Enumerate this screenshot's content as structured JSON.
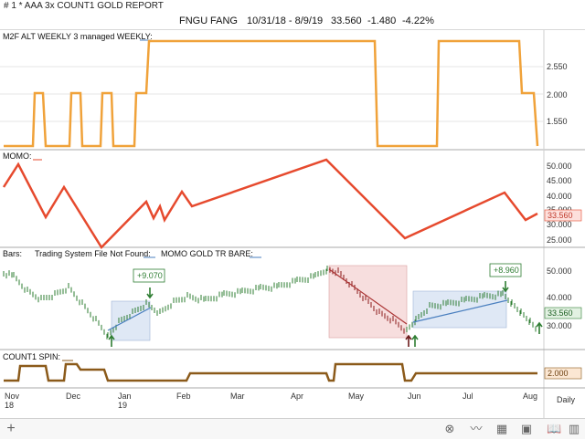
{
  "title": "#  1 * AAA 3x COUNT1 GOLD REPORT",
  "header": {
    "symbol": "FNGU",
    "group": "FANG",
    "date_range": "10/31/18 - 8/9/19",
    "last": "33.560",
    "change": "-1.480",
    "change_pct": "-4.22%"
  },
  "panels": {
    "m2f": {
      "label": "M2F ALT WEEKLY 3 managed WEEKLY:",
      "ticks": [
        "2.550",
        "2.000",
        "1.550"
      ],
      "color": "#f0a23a"
    },
    "momo": {
      "label": "MOMO:",
      "ticks": [
        "50.000",
        "45.000",
        "40.000",
        "35.000",
        "30.000",
        "25.000"
      ],
      "current": "33.560",
      "color": "#e64a2e"
    },
    "bars": {
      "label": "Bars:",
      "label2": "Trading System File Not Found:",
      "label3": "MOMO GOLD TR BARE:",
      "ticks": [
        "50.000",
        "40.000",
        "30.000"
      ],
      "current": "33.560",
      "annotation1": "+9.070",
      "annotation2": "+8.960",
      "up_color": "#2e7d32"
    },
    "count1": {
      "label": "COUNT1 SPIN:",
      "current": "2.000",
      "color": "#8b5a1a"
    }
  },
  "x_axis": {
    "months": [
      "Nov",
      "Dec",
      "Jan",
      "Feb",
      "Mar",
      "Apr",
      "May",
      "Jun",
      "Jul",
      "Aug"
    ],
    "years": [
      "18",
      "19"
    ],
    "period": "Daily"
  },
  "toolbar": {
    "add": "+",
    "icons": [
      "circle-x-icon",
      "line-chart-icon",
      "grid-icon",
      "layout-icon",
      "book-icon",
      "columns-icon"
    ]
  }
}
